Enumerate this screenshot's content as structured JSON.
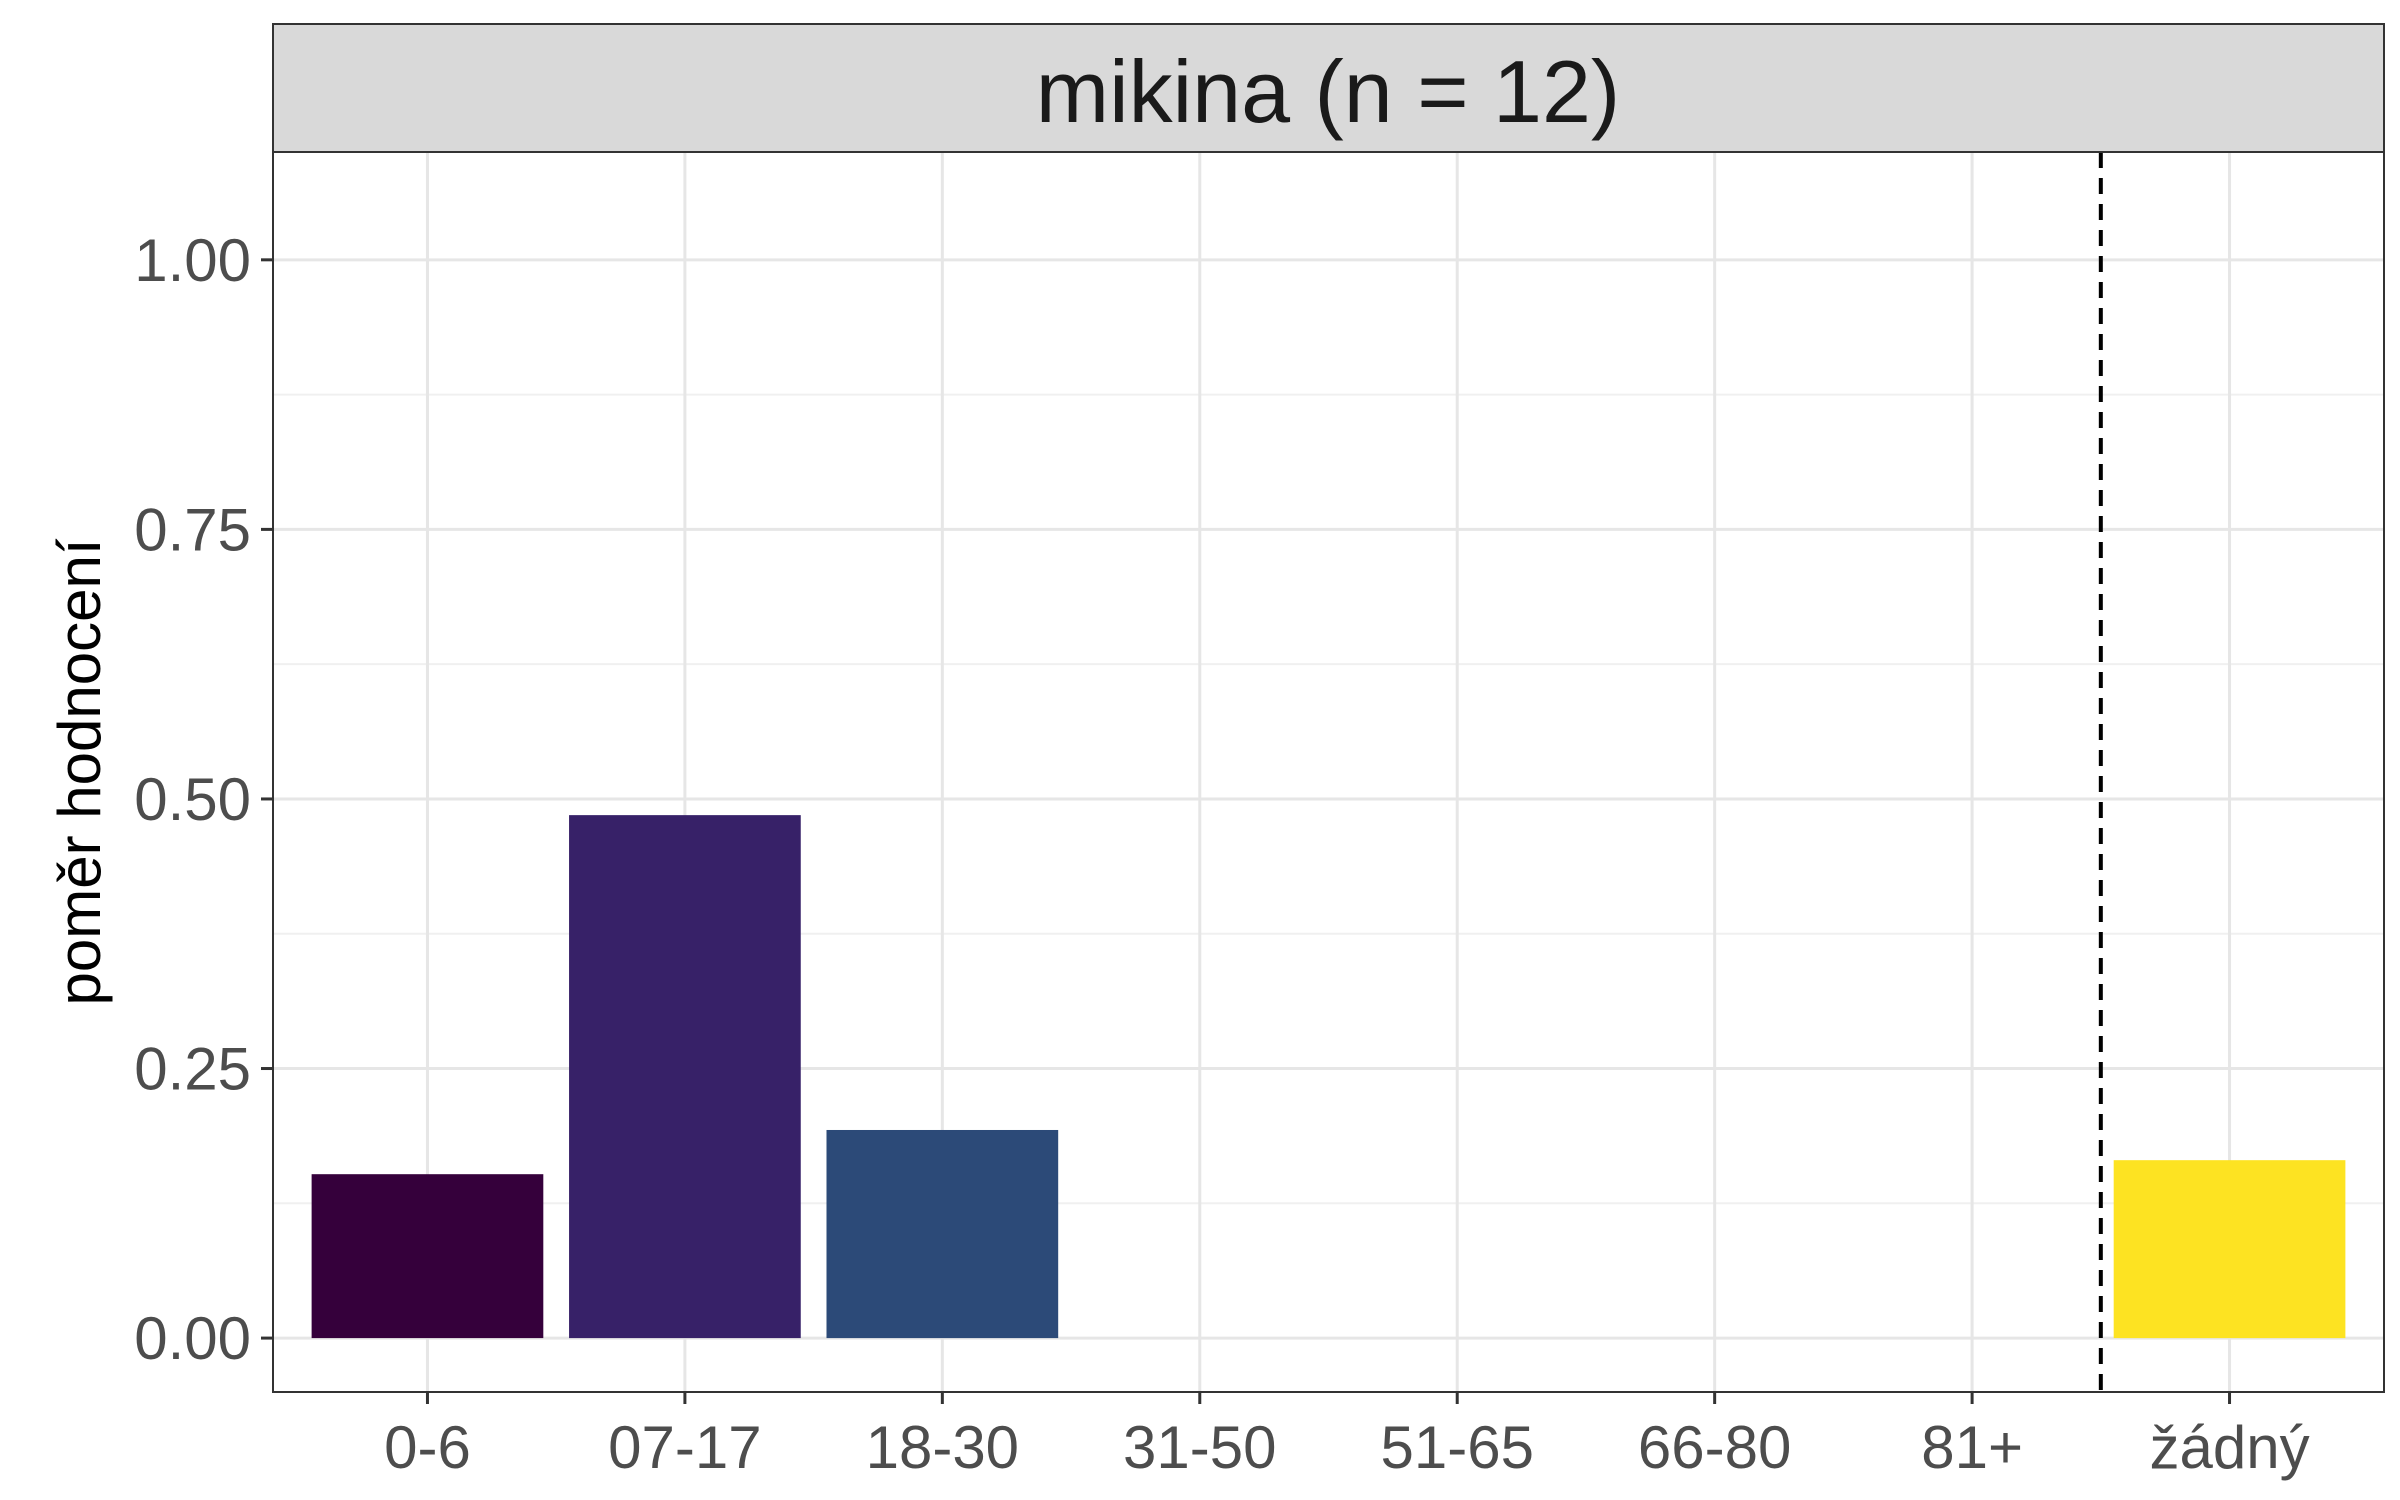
{
  "chart_data": {
    "type": "bar",
    "facet_title": "mikina (n = 12)",
    "xlabel": "",
    "ylabel": "poměr hodnocení",
    "categories": [
      "0-6",
      "07-17",
      "18-30",
      "31-50",
      "51-65",
      "66-80",
      "81+",
      "žádný"
    ],
    "values": [
      0.152,
      0.485,
      0.193,
      0,
      0,
      0,
      0,
      0.165
    ],
    "colors": [
      "#35003b",
      "#372168",
      "#2c4a78",
      "#2c6d80",
      "#238a8d",
      "#36b677",
      "#a8d942",
      "#fde322"
    ],
    "ylim": [
      -0.05,
      1.1
    ],
    "yticks": [
      0,
      0.25,
      0.5,
      0.75,
      1.0
    ],
    "ytick_labels": [
      "0.00",
      "0.25",
      "0.50",
      "0.75",
      "1.00"
    ],
    "separator": {
      "between": [
        "81+",
        "žádný"
      ],
      "style": "dashed"
    },
    "grid": true,
    "legend": "none"
  }
}
